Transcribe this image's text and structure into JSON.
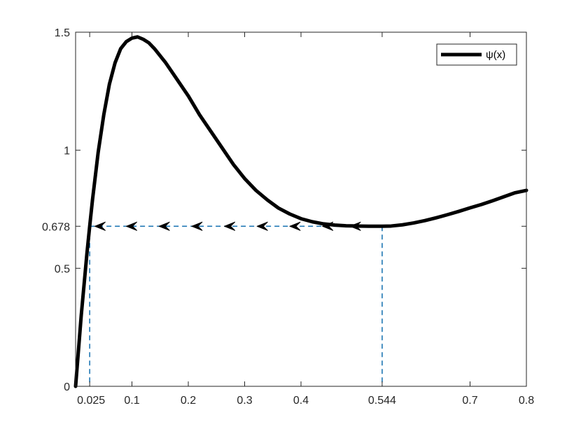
{
  "chart_data": {
    "type": "line",
    "xlim": [
      0,
      0.8
    ],
    "ylim": [
      0,
      1.5
    ],
    "x_ticks": [
      0.025,
      0.1,
      0.2,
      0.3,
      0.4,
      0.544,
      0.7,
      0.8
    ],
    "x_tick_labels": [
      "0.025",
      "0.1",
      "0.2",
      "0.3",
      "0.4",
      "0.544",
      "0.7",
      "0.8"
    ],
    "y_ticks": [
      0,
      0.5,
      0.678,
      1,
      1.5
    ],
    "y_tick_labels": [
      "0",
      "0.5",
      "0.678",
      "1",
      "1.5"
    ],
    "grid": false,
    "legend_position": "top-right",
    "series": [
      {
        "name": "ψ(x)",
        "color": "#000000",
        "x": [
          0.0,
          0.01,
          0.02,
          0.025,
          0.03,
          0.04,
          0.05,
          0.06,
          0.07,
          0.08,
          0.09,
          0.1,
          0.11,
          0.12,
          0.13,
          0.14,
          0.15,
          0.16,
          0.18,
          0.2,
          0.22,
          0.24,
          0.26,
          0.28,
          0.3,
          0.32,
          0.34,
          0.36,
          0.38,
          0.4,
          0.42,
          0.44,
          0.46,
          0.48,
          0.5,
          0.52,
          0.544,
          0.56,
          0.58,
          0.6,
          0.62,
          0.64,
          0.66,
          0.68,
          0.7,
          0.72,
          0.74,
          0.76,
          0.78,
          0.8
        ],
        "y": [
          0.0,
          0.3,
          0.56,
          0.678,
          0.79,
          0.99,
          1.15,
          1.28,
          1.37,
          1.43,
          1.46,
          1.475,
          1.48,
          1.47,
          1.455,
          1.43,
          1.4,
          1.37,
          1.3,
          1.23,
          1.15,
          1.08,
          1.01,
          0.94,
          0.88,
          0.83,
          0.79,
          0.755,
          0.73,
          0.71,
          0.697,
          0.688,
          0.683,
          0.68,
          0.679,
          0.678,
          0.678,
          0.679,
          0.684,
          0.692,
          0.702,
          0.714,
          0.727,
          0.741,
          0.756,
          0.77,
          0.786,
          0.803,
          0.82,
          0.83
        ]
      }
    ],
    "guide_lines": {
      "color": "#1f77b4",
      "horizontal": {
        "y": 0.678,
        "x_from": 0.025,
        "x_to": 0.544
      },
      "vertical": [
        0.025,
        0.544
      ]
    },
    "arrows": {
      "x": [
        0.034,
        0.09,
        0.148,
        0.206,
        0.264,
        0.322,
        0.38,
        0.438,
        0.487
      ],
      "y": 0.678,
      "direction": "left",
      "color": "#000000"
    }
  }
}
